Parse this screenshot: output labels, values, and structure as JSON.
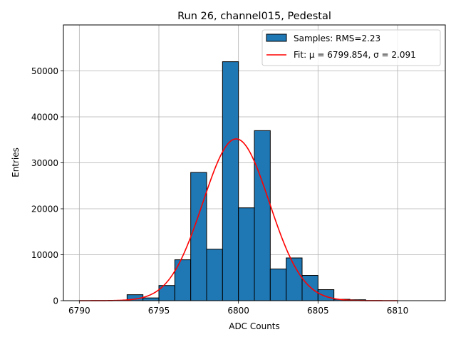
{
  "chart_data": {
    "type": "bar",
    "title": "Run 26, channel015, Pedestal",
    "xlabel": "ADC Counts",
    "ylabel": "Entries",
    "xlim": [
      6789,
      6813
    ],
    "ylim": [
      0,
      60000
    ],
    "xticks": [
      6790,
      6795,
      6800,
      6805,
      6810
    ],
    "yticks": [
      0,
      10000,
      20000,
      30000,
      40000,
      50000
    ],
    "grid": true,
    "legend_position": "top-right",
    "histogram": {
      "name": "Samples: RMS=2.23",
      "color": "#1f77b4",
      "bin_width": 1,
      "bins": [
        {
          "x0": 6790,
          "value": 0
        },
        {
          "x0": 6791,
          "value": 0
        },
        {
          "x0": 6792,
          "value": 0
        },
        {
          "x0": 6793,
          "value": 1300
        },
        {
          "x0": 6794,
          "value": 600
        },
        {
          "x0": 6795,
          "value": 3300
        },
        {
          "x0": 6796,
          "value": 8900
        },
        {
          "x0": 6797,
          "value": 27900
        },
        {
          "x0": 6798,
          "value": 11200
        },
        {
          "x0": 6799,
          "value": 52000
        },
        {
          "x0": 6800,
          "value": 20200
        },
        {
          "x0": 6801,
          "value": 37000
        },
        {
          "x0": 6802,
          "value": 6900
        },
        {
          "x0": 6803,
          "value": 9300
        },
        {
          "x0": 6804,
          "value": 5500
        },
        {
          "x0": 6805,
          "value": 2400
        },
        {
          "x0": 6806,
          "value": 300
        },
        {
          "x0": 6807,
          "value": 200
        },
        {
          "x0": 6808,
          "value": 0
        },
        {
          "x0": 6809,
          "value": 0
        },
        {
          "x0": 6810,
          "value": 0
        },
        {
          "x0": 6811,
          "value": 0
        }
      ]
    },
    "fit": {
      "name": "Fit: μ = 6799.854, σ = 2.091",
      "color": "#ff0000",
      "mu": 6799.854,
      "sigma": 2.091,
      "amplitude": 35200,
      "x_range": [
        6790,
        6810
      ]
    }
  }
}
